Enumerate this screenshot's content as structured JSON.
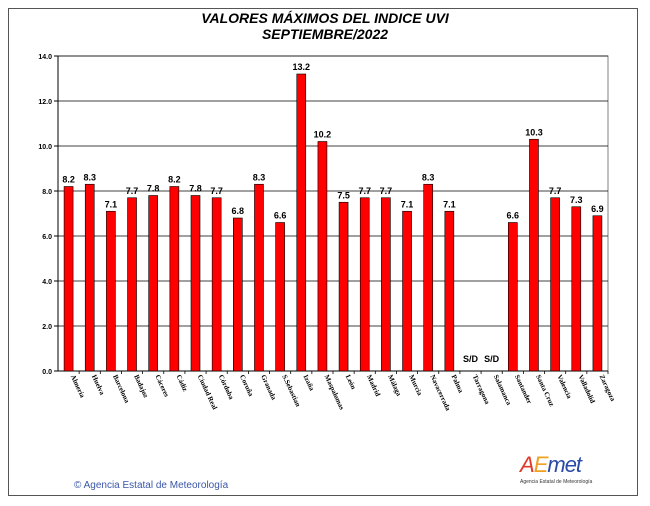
{
  "chart_data": {
    "type": "bar",
    "title": "VALORES MÁXIMOS DEL INDICE UVI",
    "subtitle": "SEPTIEMBRE/2022",
    "ylim": [
      0,
      14
    ],
    "yticks": [
      "0.0",
      "2.0",
      "4.0",
      "6.0",
      "8.0",
      "10.0",
      "12.0",
      "14.0"
    ],
    "grid": true,
    "bar_color": "#ff0000",
    "categories": [
      "Almería",
      "Huelva",
      "Barcelona",
      "Badajoz",
      "Cáceres",
      "Cádiz",
      "Ciudad Real",
      "Córdoba",
      "Coruña",
      "Granada",
      "S.Sebastian",
      "Izaña",
      "Maspalomas",
      "León",
      "Madrid",
      "Málaga",
      "Murcia",
      "Navacerrada",
      "Palma",
      "Tarragona",
      "Salamanca",
      "Santander",
      "Santa Cruz",
      "Valencia",
      "Valladolid",
      "Zaragoza"
    ],
    "values": [
      8.2,
      8.3,
      7.1,
      7.7,
      7.8,
      8.2,
      7.8,
      7.7,
      6.8,
      8.3,
      6.6,
      13.2,
      10.2,
      7.5,
      7.7,
      7.7,
      7.1,
      8.3,
      7.1,
      null,
      null,
      6.6,
      10.3,
      7.7,
      7.3,
      6.9
    ],
    "labels": [
      "8.2",
      "8.3",
      "7.1",
      "7.7",
      "7.8",
      "8.2",
      "7.8",
      "7.7",
      "6.8",
      "8.3",
      "6.6",
      "13.2",
      "10.2",
      "7.5",
      "7.7",
      "7.7",
      "7.1",
      "8.3",
      "7.1",
      "S/D",
      "S/D",
      "6.6",
      "10.3",
      "7.7",
      "7.3",
      "6.9"
    ]
  },
  "footer": {
    "copyright": "© Agencia Estatal de Meteorología",
    "logo_text_a": "A",
    "logo_text_e": "E",
    "logo_text_met": "met",
    "logo_sub": "Agencia Estatal de Meteorología"
  }
}
